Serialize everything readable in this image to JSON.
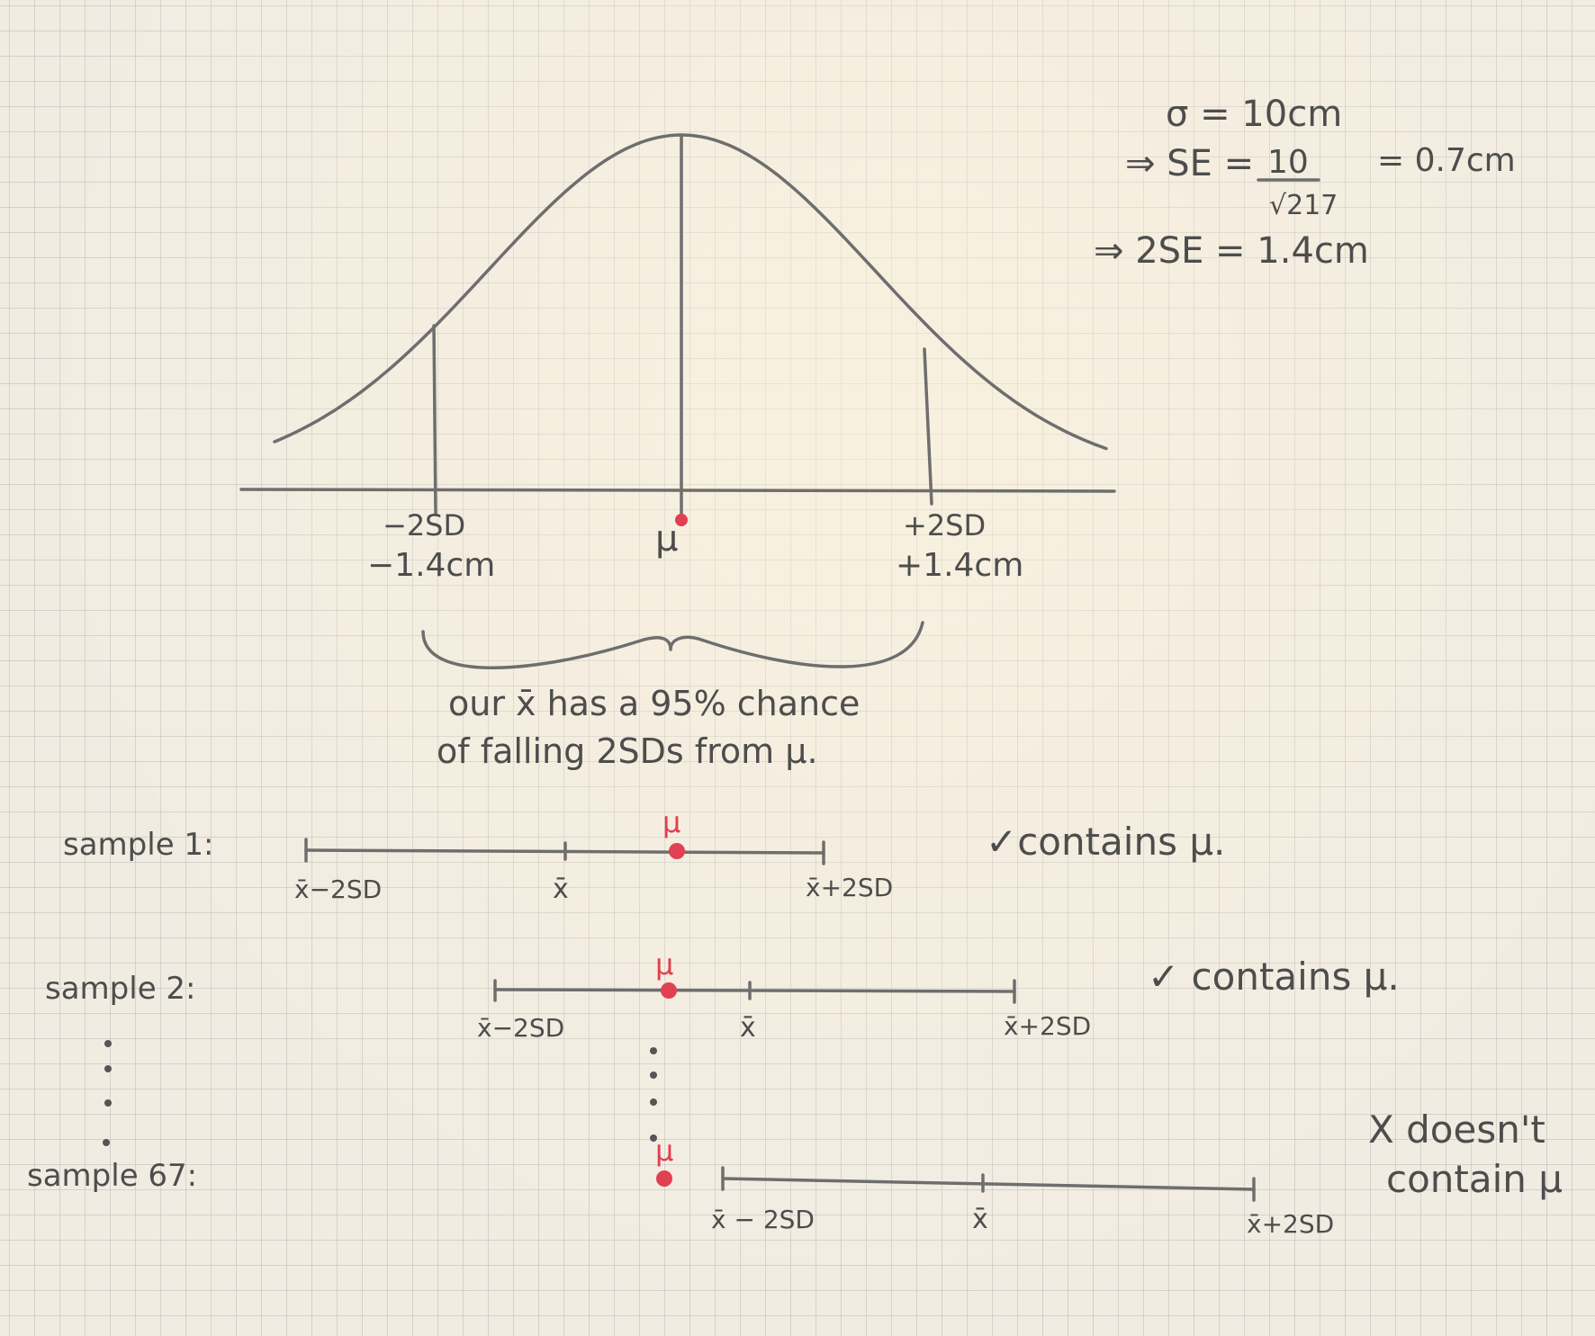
{
  "formulas": {
    "sigma": "σ = 10cm",
    "se_prefix": "⇒ SE =",
    "se_numerator": "10",
    "se_denominator": "√217",
    "se_result": "= 0.7cm",
    "two_se": "⇒ 2SE = 1.4cm"
  },
  "curve_labels": {
    "minus_2sd": "−2SD",
    "minus_value": "−1.4cm",
    "mu": "μ",
    "plus_2sd": "+2SD",
    "plus_value": "+1.4cm"
  },
  "brace_note": {
    "line1": "our x̄ has a 95% chance",
    "line2": "of falling 2SDs from μ."
  },
  "samples": [
    {
      "label": "sample 1:",
      "left": "x̄−2SD",
      "center": "x̄",
      "right": "x̄+2SD",
      "mu": "μ",
      "verdict": "✓contains μ."
    },
    {
      "label": "sample 2:",
      "left": "x̄−2SD",
      "center": "x̄",
      "right": "x̄+2SD",
      "mu": "μ",
      "verdict": "✓ contains μ."
    },
    {
      "label": "sample 67:",
      "left": "x̄ − 2SD",
      "center": "x̄",
      "right": "x̄+2SD",
      "mu": "μ",
      "verdict_line1": "X doesn't",
      "verdict_line2": "contain μ"
    }
  ],
  "colors": {
    "ink": "#6e6e6e",
    "mu_marker": "#e0404f",
    "paper": "#f1ece2"
  }
}
